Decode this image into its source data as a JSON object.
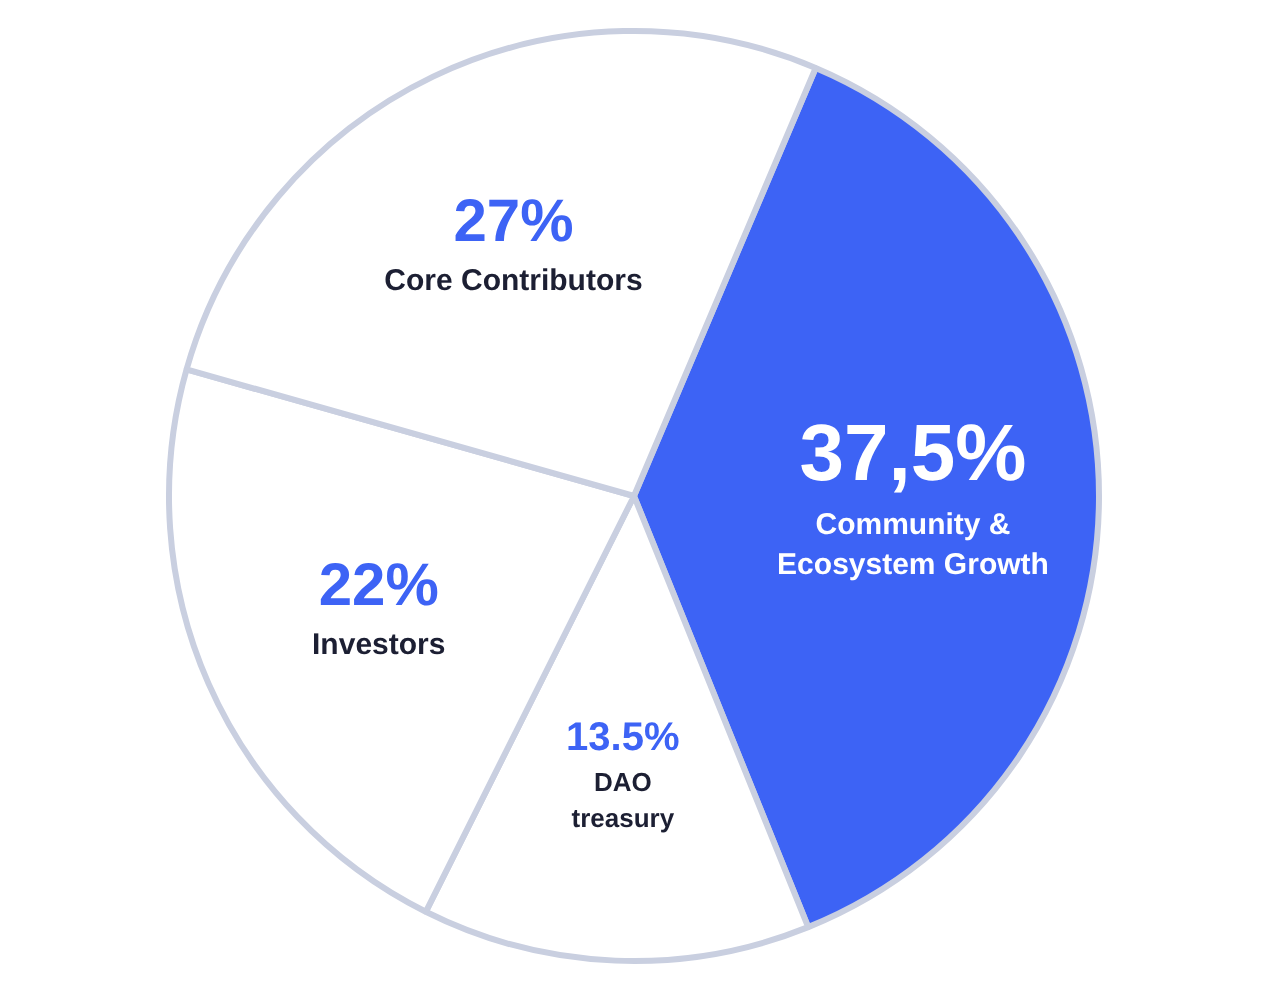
{
  "chart_data": {
    "type": "pie",
    "categories": [
      "Community & Ecosystem Growth",
      "DAO treasury",
      "Investors",
      "Core Contributors"
    ],
    "values": [
      37.5,
      13.5,
      22,
      27
    ],
    "value_labels": [
      "37,5%",
      "13.5%",
      "22%",
      "27%"
    ],
    "colors": [
      "#3d63f5",
      "#ffffff",
      "#ffffff",
      "#ffffff"
    ],
    "legend": false
  }
}
